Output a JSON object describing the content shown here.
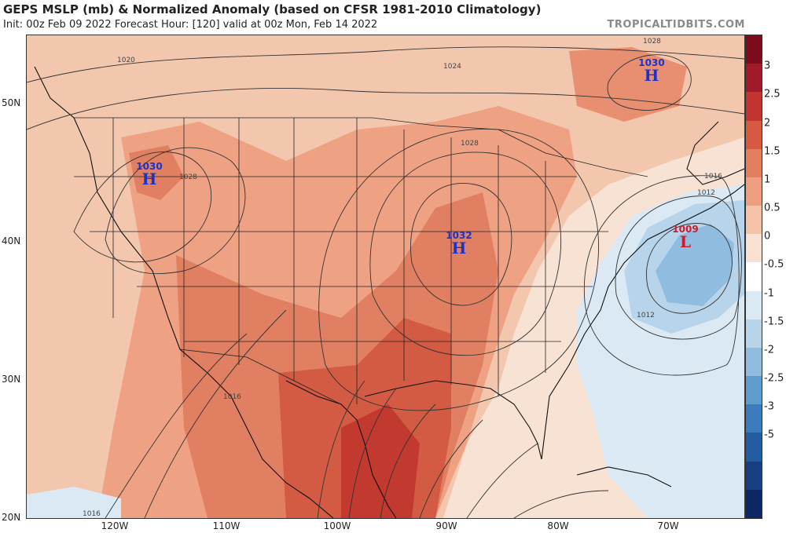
{
  "header": {
    "title": "GEPS MSLP (mb) & Normalized Anomaly (based on CFSR 1981-2010 Climatology)",
    "subtitle": "Init: 00z Feb 09 2022   Forecast Hour: [120]   valid at 00z Mon, Feb 14 2022",
    "brand": "TROPICALTIDBITS.COM"
  },
  "axes": {
    "lat_labels": [
      "50N",
      "40N",
      "30N",
      "20N"
    ],
    "lon_labels": [
      "120W",
      "110W",
      "100W",
      "90W",
      "80W",
      "70W"
    ]
  },
  "colorbar": {
    "ticks": [
      "3",
      "2.5",
      "2",
      "1.5",
      "1",
      "0.5",
      "0",
      "-0.5",
      "-1",
      "-1.5",
      "-2",
      "-2.5",
      "-3",
      "-5"
    ],
    "colors": [
      "#7d0b1c",
      "#a11a28",
      "#c2342f",
      "#d65a3f",
      "#e47f5e",
      "#ee9f80",
      "#f6c2a8",
      "#fbe1d2",
      "#ffffff",
      "#dbe9f4",
      "#b8d4ea",
      "#8fbcdf",
      "#5f9ccf",
      "#3c7cbc",
      "#245ca4",
      "#163f84",
      "#0d2766"
    ]
  },
  "pressure_centers": [
    {
      "type": "H",
      "value": "1030",
      "label": "H"
    },
    {
      "type": "H",
      "value": "1032",
      "label": "H"
    },
    {
      "type": "H",
      "value": "1030",
      "label": "H"
    },
    {
      "type": "L",
      "value": "1009",
      "label": "L"
    }
  ],
  "isobar_labels": [
    "1020",
    "1024",
    "1028",
    "1028",
    "1028",
    "1016",
    "1012",
    "1012",
    "1016",
    "1016"
  ]
}
